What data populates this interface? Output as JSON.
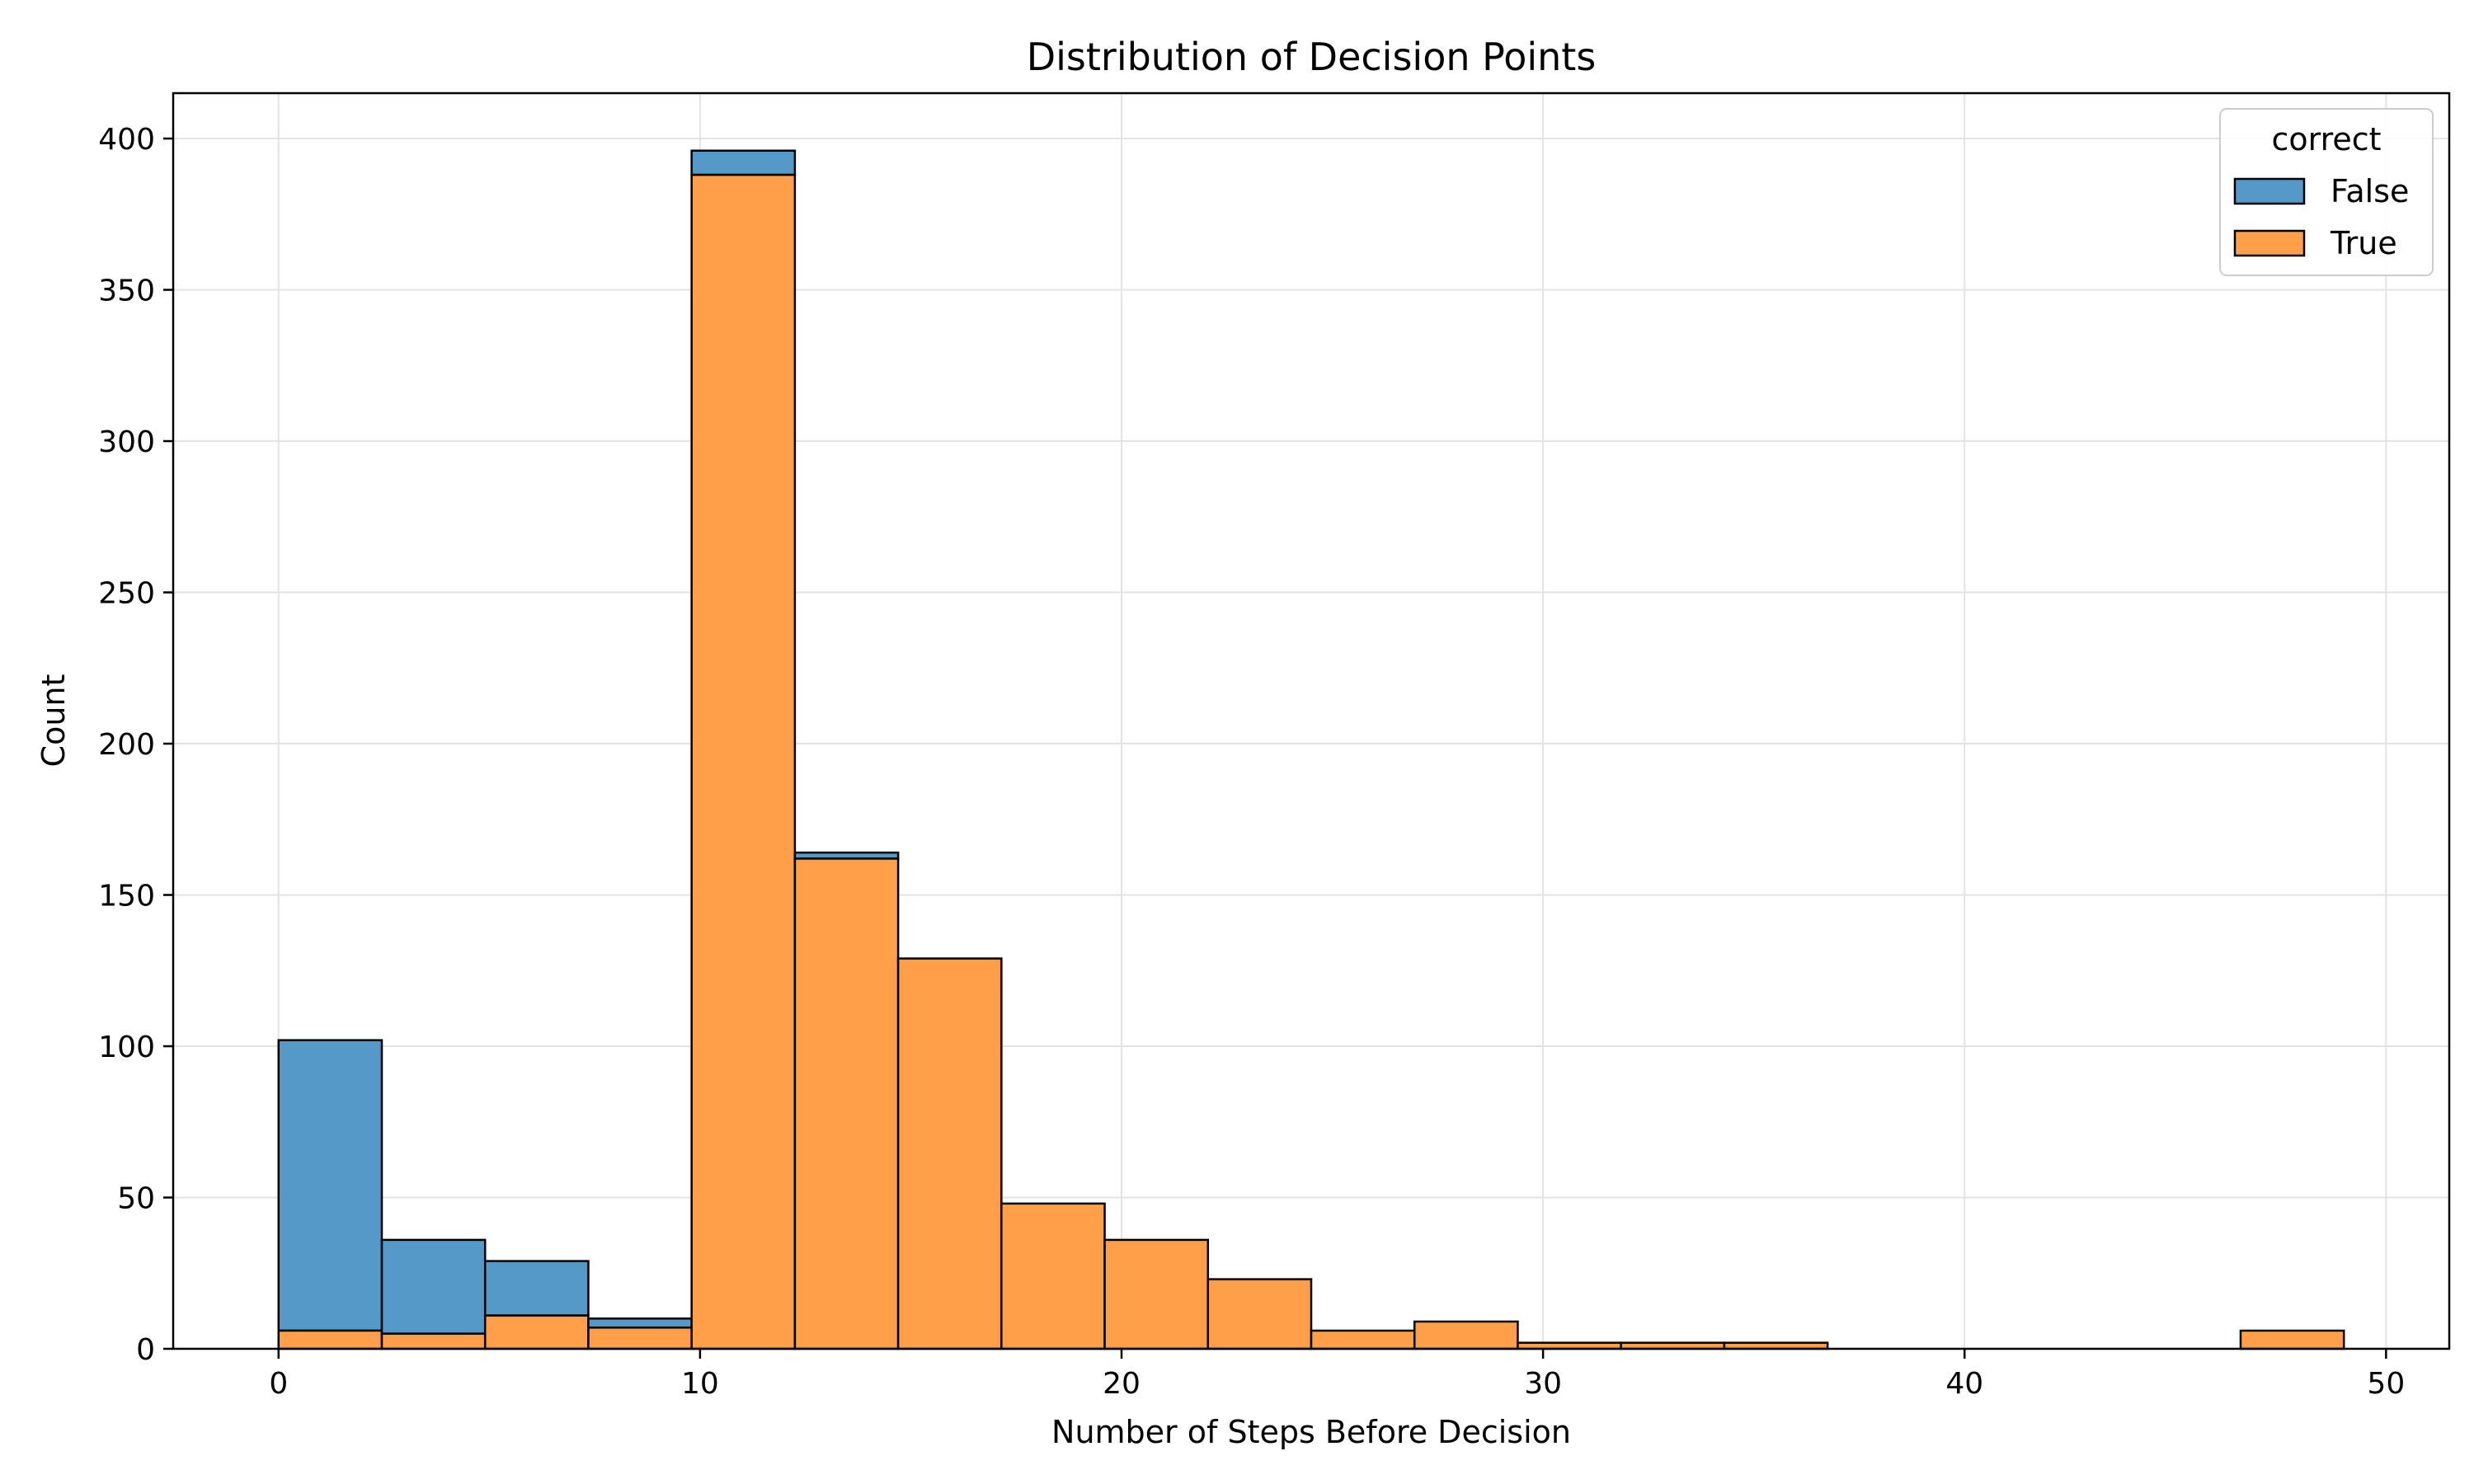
{
  "chart_data": {
    "type": "bar",
    "stacked": true,
    "title": "Distribution of Decision Points",
    "xlabel": "Number of Steps Before Decision",
    "ylabel": "Count",
    "xlim": [
      -2.5,
      51.5
    ],
    "ylim": [
      0,
      415
    ],
    "xticks": [
      0,
      10,
      20,
      30,
      40,
      50
    ],
    "yticks": [
      0,
      50,
      100,
      150,
      200,
      250,
      300,
      350,
      400
    ],
    "grid": true,
    "legend": {
      "title": "correct",
      "placement": "top-right"
    },
    "bin_edges": [
      0,
      2.45,
      4.9,
      7.35,
      9.8,
      12.25,
      14.7,
      17.15,
      19.6,
      22.05,
      24.5,
      26.95,
      29.4,
      31.85,
      34.3,
      36.75,
      39.2,
      41.65,
      44.1,
      46.55,
      49.0
    ],
    "series": [
      {
        "name": "True",
        "color": "#ff9f4a",
        "values": [
          6,
          5,
          11,
          7,
          388,
          162,
          129,
          48,
          36,
          23,
          6,
          9,
          2,
          2,
          2,
          0,
          0,
          0,
          0,
          6
        ]
      },
      {
        "name": "False",
        "color": "#5499c7",
        "values": [
          96,
          31,
          18,
          3,
          8,
          2,
          0,
          0,
          0,
          0,
          0,
          0,
          0,
          0,
          0,
          0,
          0,
          0,
          0,
          0
        ]
      }
    ]
  }
}
